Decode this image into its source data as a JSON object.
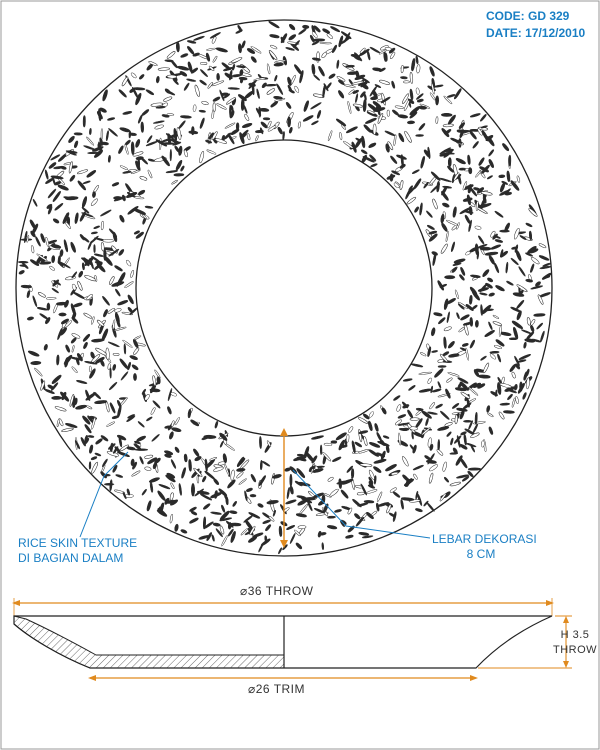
{
  "header": {
    "code": "CODE: GD 329",
    "date": "DATE: 17/12/2010"
  },
  "labels": {
    "rice_texture_line1": "RICE SKIN TEXTURE",
    "rice_texture_line2": "DI BAGIAN DALAM",
    "decoration_width_line1": "LEBAR DEKORASI",
    "decoration_width_line2": "8 CM"
  },
  "dimensions": {
    "throw_diameter": "⌀36 THROW",
    "trim_diameter": "⌀26 TRIM",
    "height_line1": "H 3.5",
    "height_line2": "THROW"
  },
  "colors": {
    "accent": "#1a7fc4",
    "dimension": "#e08a1e",
    "ink": "#222222"
  }
}
